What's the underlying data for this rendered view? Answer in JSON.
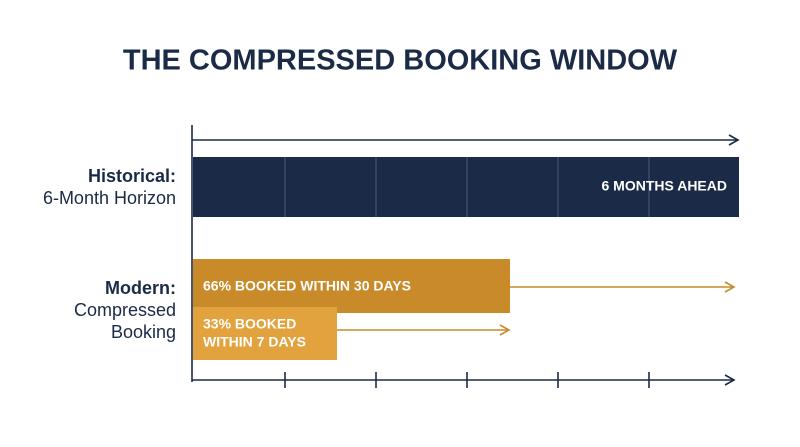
{
  "title": "THE COMPRESSED BOOKING WINDOW",
  "rows": [
    {
      "label": "Historical:",
      "sublabel": [
        "6-Month Horizon"
      ],
      "bars": [
        {
          "text": [
            "6 MONTHS AHEAD"
          ]
        }
      ]
    },
    {
      "label": "Modern:",
      "sublabel": [
        "Compressed",
        "Booking"
      ],
      "bars": [
        {
          "text": [
            "66% BOOKED WITHIN 30 DAYS"
          ]
        },
        {
          "text": [
            "33% BOOKED",
            "WITHIN 7 DAYS"
          ]
        }
      ]
    }
  ]
}
